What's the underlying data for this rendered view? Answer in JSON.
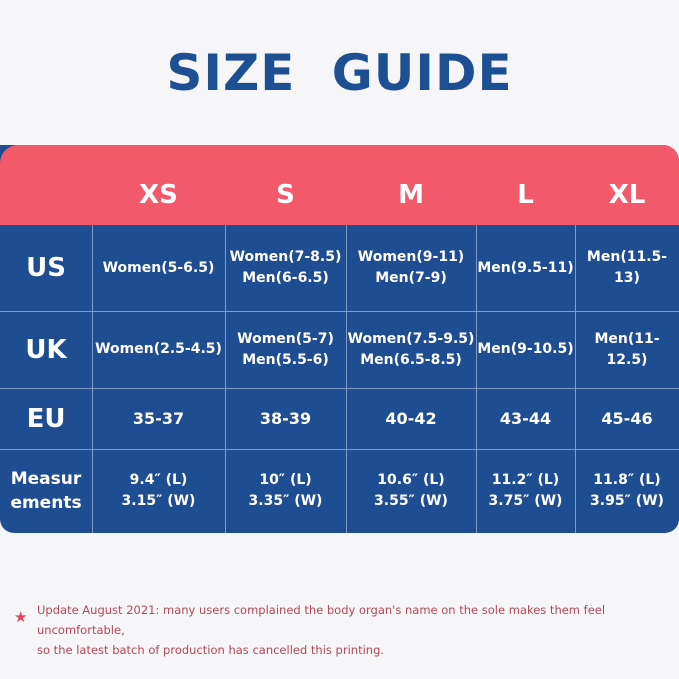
{
  "title": "SIZE GUIDE",
  "sizes": [
    "XS",
    "S",
    "M",
    "L",
    "XL"
  ],
  "rows": [
    {
      "label": "US",
      "cells": [
        [
          "Women(5-6.5)"
        ],
        [
          "Women(7-8.5)",
          "Men(6-6.5)"
        ],
        [
          "Women(9-11)",
          "Men(7-9)"
        ],
        [
          "Men(9.5-11)"
        ],
        [
          "Men(11.5-13)"
        ]
      ]
    },
    {
      "label": "UK",
      "cells": [
        [
          "Women(2.5-4.5)"
        ],
        [
          "Women(5-7)",
          "Men(5.5-6)"
        ],
        [
          "Women(7.5-9.5)",
          "Men(6.5-8.5)"
        ],
        [
          "Men(9-10.5)"
        ],
        [
          "Men(11-12.5)"
        ]
      ]
    },
    {
      "label": "EU",
      "cells": [
        [
          "35-37"
        ],
        [
          "38-39"
        ],
        [
          "40-42"
        ],
        [
          "43-44"
        ],
        [
          "45-46"
        ]
      ]
    },
    {
      "label_lines": [
        "Measur",
        "ements"
      ],
      "cells": [
        [
          "9.4″ (L)",
          "3.15″ (W)"
        ],
        [
          "10″ (L)",
          "3.35″ (W)"
        ],
        [
          "10.6″ (L)",
          "3.55″ (W)"
        ],
        [
          "11.2″ (L)",
          "3.75″ (W)"
        ],
        [
          "11.8″ (L)",
          "3.95″ (W)"
        ]
      ]
    }
  ],
  "note": {
    "icon": "star-icon",
    "line1": "Update August 2021: many users complained the body organ's name on the sole makes them feel uncomfortable,",
    "line2": "so the latest batch of production has cancelled this printing."
  },
  "colors": {
    "title": "#1d4f93",
    "header_bg": "#f25a6b",
    "table_bg": "#1f4d92",
    "note_text": "#b2485a"
  }
}
